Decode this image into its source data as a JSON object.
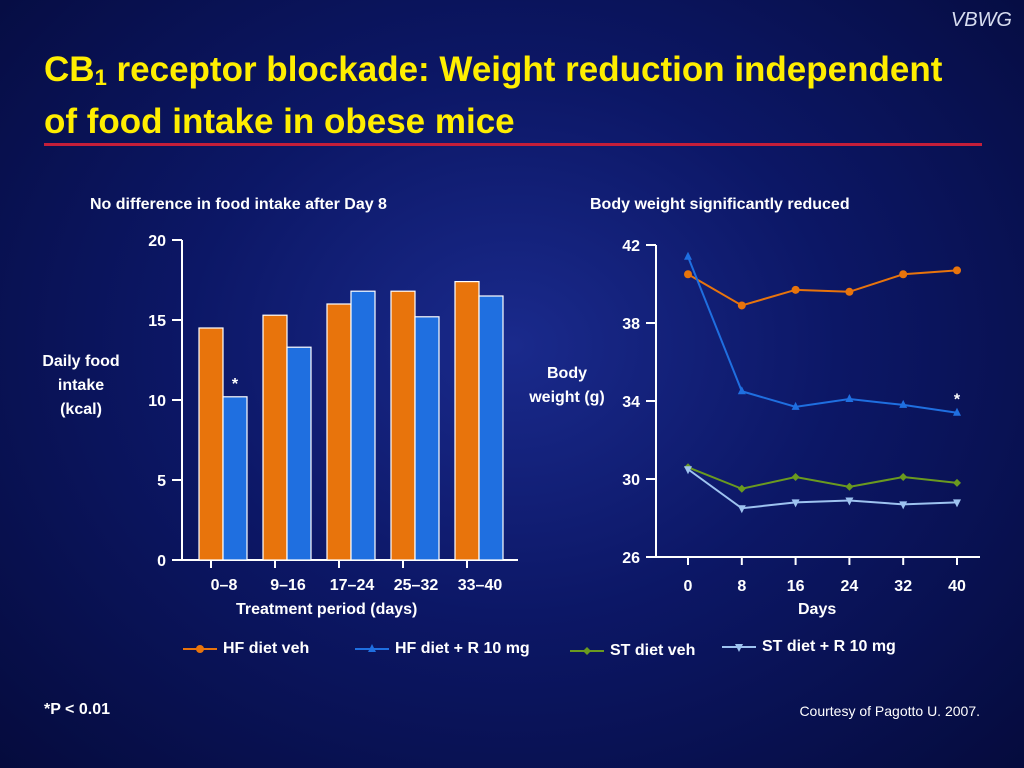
{
  "brand": "VBWG",
  "slide_title_main": "CB",
  "slide_title_sub": "1",
  "slide_title_rest": " receptor blockade: Weight reduction independent of food intake in obese mice",
  "footnote": "*P < 0.01",
  "credit": "Courtesy of Pagotto U. 2007.",
  "legend": [
    {
      "label": "HF diet veh",
      "color": "#e8740c",
      "marker": "circle"
    },
    {
      "label": "HF diet + R 10 mg",
      "color": "#1f6fe0",
      "marker": "triangle-up"
    },
    {
      "label": "ST diet veh",
      "color": "#6a9a1f",
      "marker": "diamond"
    },
    {
      "label": "ST diet + R 10 mg",
      "color": "#9ec3f0",
      "marker": "triangle-down"
    }
  ],
  "chart_data": [
    {
      "type": "bar",
      "title": "No difference in food intake after Day 8",
      "ylabel": "Daily food intake (kcal)",
      "xlabel": "Treatment period (days)",
      "categories": [
        "0–8",
        "9–16",
        "17–24",
        "25–32",
        "33–40"
      ],
      "ylim": [
        0,
        20
      ],
      "yticks": [
        0,
        5,
        10,
        15,
        20
      ],
      "series": [
        {
          "name": "HF diet veh",
          "color": "#e8740c",
          "values": [
            14.5,
            15.3,
            16.0,
            16.8,
            17.4
          ]
        },
        {
          "name": "HF diet + R 10 mg",
          "color": "#1f6fe0",
          "values": [
            10.2,
            13.3,
            16.8,
            15.2,
            16.5
          ]
        }
      ],
      "annotations": [
        {
          "text": "*",
          "series": 1,
          "category": 0
        }
      ]
    },
    {
      "type": "line",
      "title": "Body weight significantly reduced",
      "ylabel": "Body weight (g)",
      "xlabel": "Days",
      "x": [
        0,
        8,
        16,
        24,
        32,
        40
      ],
      "ylim": [
        26,
        42
      ],
      "yticks": [
        26,
        30,
        34,
        38,
        42
      ],
      "series": [
        {
          "name": "HF diet veh",
          "color": "#e8740c",
          "marker": "circle",
          "values": [
            40.5,
            38.9,
            39.7,
            39.6,
            40.5,
            40.7
          ]
        },
        {
          "name": "HF diet + R 10 mg",
          "color": "#1f6fe0",
          "marker": "triangle-up",
          "values": [
            41.4,
            34.5,
            33.7,
            34.1,
            33.8,
            33.4
          ]
        },
        {
          "name": "ST diet veh",
          "color": "#6a9a1f",
          "marker": "diamond",
          "values": [
            30.6,
            29.5,
            30.1,
            29.6,
            30.1,
            29.8
          ]
        },
        {
          "name": "ST diet + R 10 mg",
          "color": "#9ec3f0",
          "marker": "triangle-down",
          "values": [
            30.5,
            28.5,
            28.8,
            28.9,
            28.7,
            28.8
          ]
        }
      ],
      "annotations": [
        {
          "text": "*",
          "series": 1,
          "x": 40
        }
      ]
    }
  ]
}
